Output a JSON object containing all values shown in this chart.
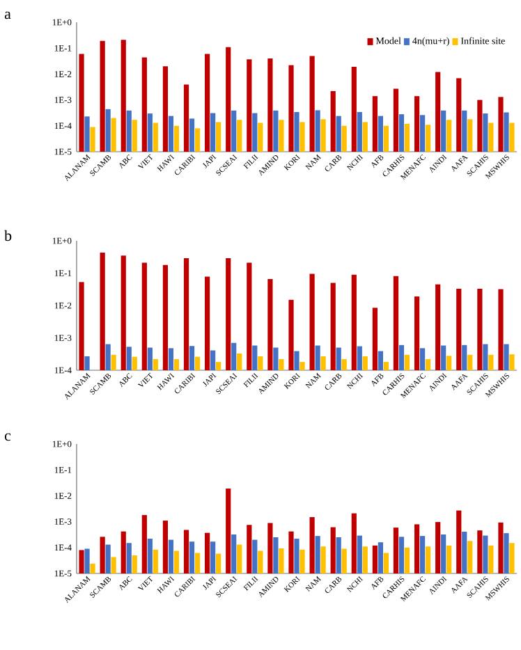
{
  "chart_data": [
    {
      "type": "bar",
      "title": "a",
      "log": "y",
      "legend": "top right",
      "categories": [
        "ALANAM",
        "SCAMB",
        "ABC",
        "VIET",
        "HAWI",
        "CARIBI",
        "JAPI",
        "SCSEAI",
        "FILII",
        "AMIND",
        "KORI",
        "NAM",
        "CARB",
        "NCHI",
        "AFB",
        "CARHIS",
        "MENAFC",
        "AINDI",
        "AAFA",
        "SCAHIS",
        "MSWHIS"
      ],
      "ylim": [
        1e-05,
        1
      ],
      "yticks": [
        {
          "value": 1e-05,
          "label": "1E-5"
        },
        {
          "value": 0.0001,
          "label": "1E-4"
        },
        {
          "value": 0.001,
          "label": "1E-3"
        },
        {
          "value": 0.01,
          "label": "1E-2"
        },
        {
          "value": 0.1,
          "label": "1E-1"
        },
        {
          "value": 1,
          "label": "1E+0"
        }
      ],
      "series": [
        {
          "name": "Model",
          "color": "#c00000",
          "values": [
            0.06,
            0.19,
            0.21,
            0.044,
            0.02,
            0.0039,
            0.06,
            0.11,
            0.037,
            0.04,
            0.022,
            0.05,
            0.0022,
            0.019,
            0.0014,
            0.0027,
            0.0014,
            0.012,
            0.0069,
            0.001,
            0.0013
          ]
        },
        {
          "name": "4n(mu+r)",
          "color": "#4472c4",
          "values": [
            0.00023,
            0.00044,
            0.00039,
            0.0003,
            0.00024,
            0.00019,
            0.00031,
            0.00039,
            0.00031,
            0.00039,
            0.00034,
            0.0004,
            0.00024,
            0.00034,
            0.00024,
            0.00028,
            0.00026,
            0.00039,
            0.00039,
            0.0003,
            0.00033
          ]
        },
        {
          "name": "Infinite site",
          "color": "#ffc000",
          "values": [
            9e-05,
            0.0002,
            0.00017,
            0.00013,
            0.0001,
            8e-05,
            0.00014,
            0.00017,
            0.00013,
            0.00017,
            0.00014,
            0.00018,
            0.0001,
            0.00014,
            0.0001,
            0.00012,
            0.00011,
            0.00017,
            0.00018,
            0.00013,
            0.00013
          ]
        }
      ]
    },
    {
      "type": "bar",
      "title": "b",
      "log": "y",
      "categories": [
        "ALANAM",
        "SCAMB",
        "ABC",
        "VIET",
        "HAWI",
        "CARIBI",
        "JAPI",
        "SCSEAI",
        "FILII",
        "AMIND",
        "KORI",
        "NAM",
        "CARB",
        "NCHI",
        "AFB",
        "CARHIS",
        "MENAFC",
        "AINDI",
        "AAFA",
        "SCAHIS",
        "MSWHIS"
      ],
      "ylim": [
        0.0001,
        1
      ],
      "yticks": [
        {
          "value": 0.0001,
          "label": "1E-4"
        },
        {
          "value": 0.001,
          "label": "1E-3"
        },
        {
          "value": 0.01,
          "label": "1E-2"
        },
        {
          "value": 0.1,
          "label": "1E-1"
        },
        {
          "value": 1,
          "label": "1E+0"
        }
      ],
      "series": [
        {
          "color": "#c00000",
          "values": [
            0.053,
            0.43,
            0.35,
            0.21,
            0.18,
            0.29,
            0.078,
            0.29,
            0.21,
            0.066,
            0.015,
            0.095,
            0.05,
            0.089,
            0.0085,
            0.081,
            0.019,
            0.045,
            0.033,
            0.033,
            0.032
          ]
        },
        {
          "color": "#4472c4",
          "values": [
            0.00027,
            0.00064,
            0.00053,
            0.0005,
            0.00048,
            0.00056,
            0.00041,
            0.0007,
            0.00058,
            0.0005,
            0.00039,
            0.00058,
            0.0005,
            0.00055,
            0.00039,
            0.0006,
            0.00048,
            0.00058,
            0.0006,
            0.00064,
            0.00064
          ]
        },
        {
          "color": "#ffc000",
          "values": [
            null,
            0.0003,
            0.00026,
            0.00022,
            0.00022,
            0.00026,
            0.00018,
            0.00033,
            0.00027,
            0.00022,
            0.00018,
            0.00027,
            0.00022,
            0.00027,
            0.00018,
            0.0003,
            0.00022,
            0.00028,
            0.0003,
            0.0003,
            0.00031
          ]
        }
      ]
    },
    {
      "type": "bar",
      "title": "c",
      "log": "y",
      "categories": [
        "ALANAM",
        "SCAMB",
        "ABC",
        "VIET",
        "HAWI",
        "CARIBI",
        "JAPI",
        "SCSEAI",
        "FILII",
        "AMIND",
        "KORI",
        "NAM",
        "CARB",
        "NCHI",
        "AFB",
        "CARHIS",
        "MENAFC",
        "AINDI",
        "AAFA",
        "SCAHIS",
        "MSWHIS"
      ],
      "ylim": [
        1e-05,
        1
      ],
      "yticks": [
        {
          "value": 1e-05,
          "label": "1E-5"
        },
        {
          "value": 0.0001,
          "label": "1E-4"
        },
        {
          "value": 0.001,
          "label": "1E-3"
        },
        {
          "value": 0.01,
          "label": "1E-2"
        },
        {
          "value": 0.1,
          "label": "1E-1"
        },
        {
          "value": 1,
          "label": "1E+0"
        }
      ],
      "series": [
        {
          "color": "#c00000",
          "values": [
            8e-05,
            0.00026,
            0.00042,
            0.0018,
            0.0011,
            0.00048,
            0.00037,
            0.019,
            0.00075,
            0.00089,
            0.00042,
            0.0015,
            0.00061,
            0.0021,
            0.00012,
            0.00059,
            0.00079,
            0.00097,
            0.0027,
            0.00046,
            0.00093
          ]
        },
        {
          "color": "#4472c4",
          "values": [
            9e-05,
            0.00013,
            0.00015,
            0.00022,
            0.0002,
            0.00017,
            0.00017,
            0.00032,
            0.0002,
            0.00025,
            0.00022,
            0.00028,
            0.00025,
            0.00029,
            0.00016,
            0.00026,
            0.00028,
            0.00032,
            0.00041,
            0.00029,
            0.00036
          ]
        },
        {
          "color": "#ffc000",
          "values": [
            2.4e-05,
            4.3e-05,
            5e-05,
            8.3e-05,
            7.5e-05,
            6.2e-05,
            5.8e-05,
            0.00013,
            7.5e-05,
            9.3e-05,
            8.3e-05,
            0.00011,
            9e-05,
            0.00011,
            6.2e-05,
            0.0001,
            0.00011,
            0.00012,
            0.00018,
            0.00012,
            0.00015
          ]
        }
      ]
    }
  ]
}
